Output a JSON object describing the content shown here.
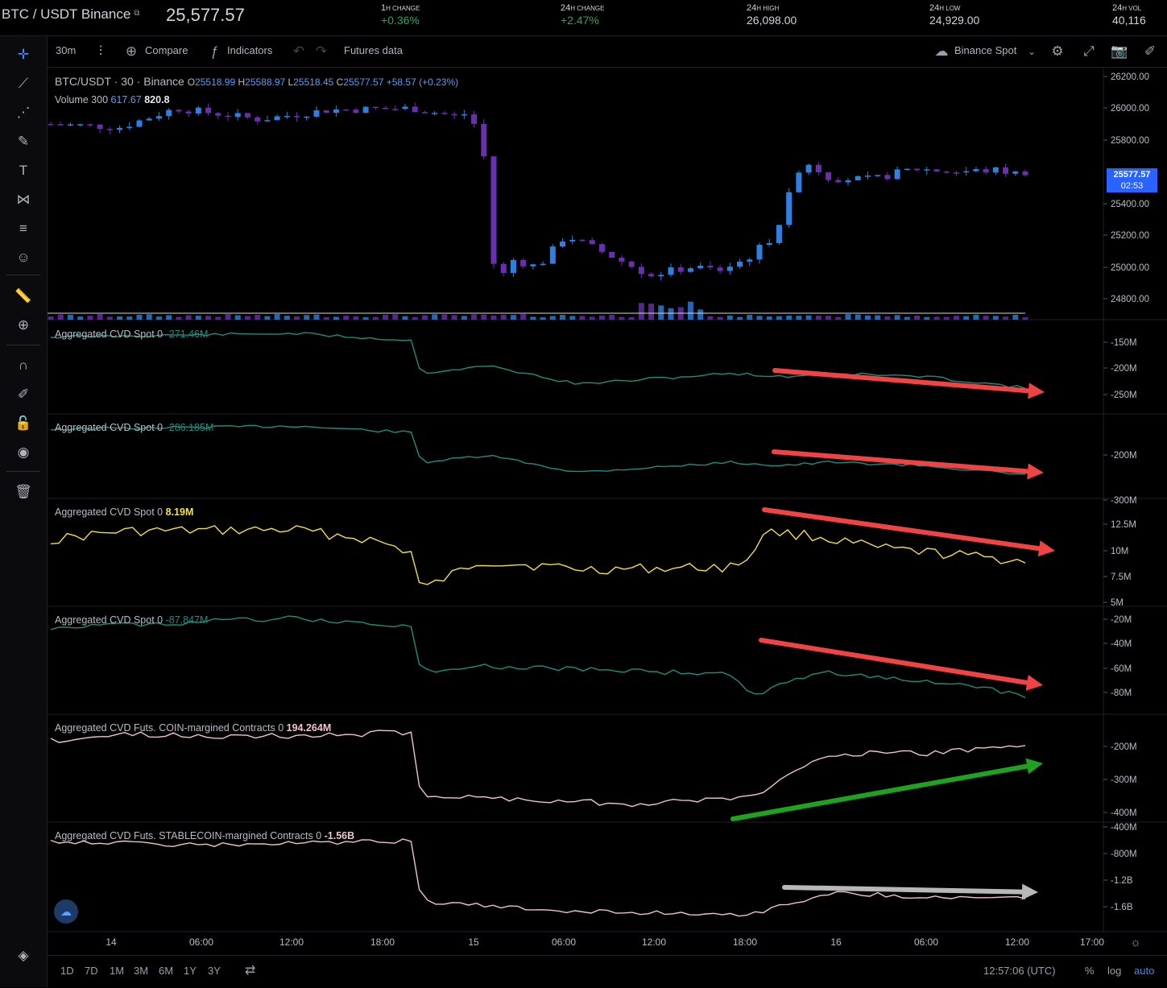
{
  "header": {
    "symbol": "BTC / USDT Binance",
    "last_price": "25,577.57",
    "stats": [
      {
        "big": "1",
        "small": "H CHANGE",
        "value": "+0.36%",
        "positive": true
      },
      {
        "big": "24",
        "small": "H CHANGE",
        "value": "+2.47%",
        "positive": true
      },
      {
        "big": "24",
        "small": "H HIGH",
        "value": "26,098.00",
        "positive": false
      },
      {
        "big": "24",
        "small": "H LOW",
        "value": "24,929.00",
        "positive": false
      },
      {
        "big": "24",
        "small": "H VOL",
        "value": "40,116",
        "positive": false
      }
    ]
  },
  "toolbar": {
    "interval": "30m",
    "compare": "Compare",
    "indicators": "Indicators",
    "futures": "Futures data",
    "source": "Binance Spot"
  },
  "legend": {
    "pair": "BTC/USDT",
    "sep1": "·",
    "interval": "30",
    "sep2": "·",
    "exchange": "Binance",
    "o_label": "O",
    "o": "25518.99",
    "h_label": "H",
    "h": "25588.97",
    "l_label": "L",
    "l": "25518.45",
    "c_label": "C",
    "c": "25577.57",
    "chg": "+58.57 (+0.23%)",
    "volume_label": "Volume 300",
    "volume_a": "617.67",
    "volume_b": "820.8"
  },
  "last_price_tag": {
    "price": "25577.57",
    "timer": "02:53"
  },
  "price_axis": [
    "26200.00",
    "26000.00",
    "25800.00",
    "25400.00",
    "25200.00",
    "25000.00",
    "24800.00"
  ],
  "panes": [
    {
      "title": "Aggregated CVD Spot 0",
      "value": "-271.46M",
      "color": "#1f8c7f",
      "axis": [
        "-150M",
        "-200M",
        "-250M"
      ]
    },
    {
      "title": "Aggregated CVD Spot 0",
      "value": "-286.185M",
      "color": "#1f8c7f",
      "axis": [
        "-200M",
        "-300M"
      ]
    },
    {
      "title": "Aggregated CVD Spot 0",
      "value": "8.19M",
      "color": "#f5e03c",
      "axis": [
        "12.5M",
        "10M",
        "7.5M",
        "5M"
      ]
    },
    {
      "title": "Aggregated CVD Spot 0",
      "value": "-87.847M",
      "color": "#1f8c7f",
      "axis": [
        "-20M",
        "-40M",
        "-60M",
        "-80M"
      ]
    },
    {
      "title": "Aggregated CVD Futs. COIN-margined Contracts 0",
      "value": "194.264M",
      "color": "#f3c1cf",
      "axis": [
        "-200M",
        "-300M",
        "-400M"
      ]
    },
    {
      "title": "Aggregated CVD Futs. STABLECOIN-margined Contracts 0",
      "value": "-1.56B",
      "color": "#f3c1cf",
      "axis": [
        "-400M",
        "-800M",
        "-1.2B",
        "-1.6B"
      ]
    }
  ],
  "time_axis": [
    "14",
    "06:00",
    "12:00",
    "18:00",
    "15",
    "06:00",
    "12:00",
    "18:00",
    "16",
    "06:00",
    "12:00",
    "17:00"
  ],
  "bottom": {
    "ranges": [
      "1D",
      "7D",
      "1M",
      "3M",
      "6M",
      "1Y",
      "3Y"
    ],
    "clock": "12:57:06 (UTC)",
    "percent": "%",
    "log": "log",
    "auto": "auto"
  },
  "colors": {
    "up": "#2f7fe0",
    "down": "#6a2fb0",
    "arrow_red": "#f04444",
    "arrow_green": "#1fa31f",
    "arrow_gray": "#b8b8b8"
  }
}
